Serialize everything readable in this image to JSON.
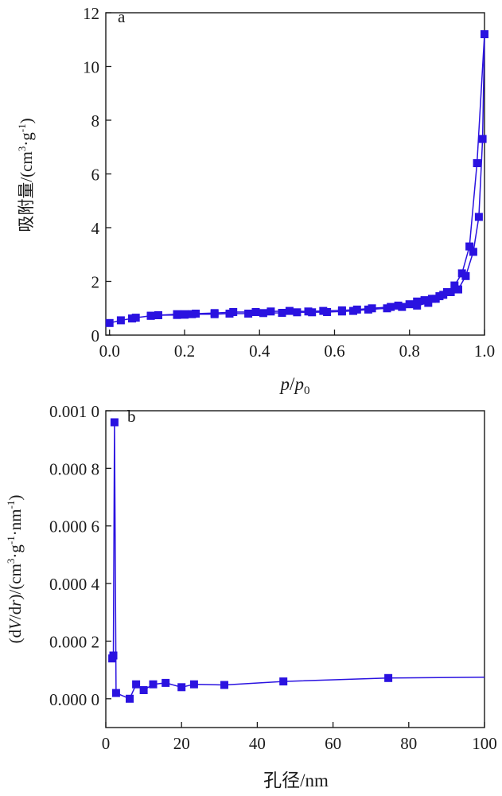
{
  "colors": {
    "series": "#2a12e0",
    "axis": "#1a1a1a"
  },
  "chart_data": [
    {
      "type": "line",
      "panel_label": "a",
      "xlabel_italic_1": "p",
      "xlabel_sep": "/",
      "xlabel_italic_2": "p",
      "xlabel_sub": "0",
      "ylabel_main": "吸附量/(cm",
      "ylabel_sup": "3",
      "ylabel_mid": "·g",
      "ylabel_sup2": "-1",
      "ylabel_end": ")",
      "xlim": [
        -0.01,
        1.0
      ],
      "ylim": [
        0,
        12
      ],
      "xticks": [
        0.0,
        0.2,
        0.4,
        0.6,
        0.8,
        1.0
      ],
      "xtick_labels": [
        "0.0",
        "0.2",
        "0.4",
        "0.6",
        "0.8",
        "1.0"
      ],
      "yticks": [
        0,
        2,
        4,
        6,
        8,
        10,
        12
      ],
      "ytick_labels": [
        "0",
        "2",
        "4",
        "6",
        "8",
        "10",
        "12"
      ],
      "grid": false,
      "series": [
        {
          "x": [
            0.0,
            0.03,
            0.06,
            0.07,
            0.11,
            0.13,
            0.18,
            0.2,
            0.22,
            0.28,
            0.32,
            0.37,
            0.41,
            0.46,
            0.5,
            0.54,
            0.58,
            0.62,
            0.65,
            0.69,
            0.74,
            0.78,
            0.82,
            0.85,
            0.87,
            0.89,
            0.91,
            0.93,
            0.95,
            0.97,
            0.985,
            0.995,
            1.0
          ],
          "y": [
            0.45,
            0.55,
            0.62,
            0.65,
            0.72,
            0.74,
            0.75,
            0.76,
            0.78,
            0.78,
            0.8,
            0.8,
            0.82,
            0.83,
            0.85,
            0.85,
            0.86,
            0.88,
            0.9,
            0.95,
            1.0,
            1.05,
            1.1,
            1.2,
            1.35,
            1.5,
            1.6,
            1.7,
            2.2,
            3.1,
            4.4,
            7.3,
            11.2
          ]
        },
        {
          "x": [
            1.0,
            0.98,
            0.96,
            0.94,
            0.92,
            0.9,
            0.88,
            0.86,
            0.84,
            0.82,
            0.8,
            0.77,
            0.75,
            0.7,
            0.66,
            0.62,
            0.57,
            0.53,
            0.48,
            0.43,
            0.39,
            0.33,
            0.28,
            0.23,
            0.2,
            0.18,
            0.13,
            0.11
          ],
          "y": [
            11.2,
            6.4,
            3.3,
            2.3,
            1.85,
            1.6,
            1.45,
            1.35,
            1.3,
            1.25,
            1.15,
            1.1,
            1.05,
            1.0,
            0.95,
            0.92,
            0.9,
            0.88,
            0.9,
            0.88,
            0.86,
            0.86,
            0.82,
            0.8,
            0.78,
            0.78,
            0.74,
            0.72
          ]
        }
      ]
    },
    {
      "type": "line",
      "panel_label": "b",
      "xlabel": "孔径/nm",
      "ylabel_pre": "(d",
      "ylabel_it1": "V",
      "ylabel_mid1": "/d",
      "ylabel_it2": "r",
      "ylabel_mid2": ")/(cm",
      "ylabel_sup1": "3",
      "ylabel_mid3": "·g",
      "ylabel_sup2": "-1",
      "ylabel_mid4": "·nm",
      "ylabel_sup3": "-1",
      "ylabel_end": ")",
      "xlim": [
        0,
        100
      ],
      "ylim": [
        -0.0001,
        0.001
      ],
      "xticks": [
        0,
        20,
        40,
        60,
        80,
        100
      ],
      "xtick_labels": [
        "0",
        "20",
        "40",
        "60",
        "80",
        "100"
      ],
      "yticks": [
        0,
        0.0002,
        0.0004,
        0.0006,
        0.0008,
        0.001
      ],
      "ytick_labels": [
        "0.000 0",
        "0.000 2",
        "0.000 4",
        "0.000 6",
        "0.000 8",
        "0.001 0"
      ],
      "grid": false,
      "series": [
        {
          "x": [
            1.7,
            2.0,
            2.3,
            2.7,
            6.3,
            8.0,
            10.0,
            12.5,
            15.8,
            20.0,
            23.3,
            31.3,
            46.9,
            74.6,
            100.0
          ],
          "y": [
            0.00014,
            0.00015,
            0.00096,
            2e-05,
            0.0,
            5e-05,
            3e-05,
            5e-05,
            5.5e-05,
            4e-05,
            5e-05,
            4.8e-05,
            6e-05,
            7.2e-05,
            7.5e-05
          ],
          "markers": [
            true,
            true,
            true,
            true,
            true,
            true,
            true,
            true,
            true,
            true,
            true,
            true,
            true,
            true,
            false
          ]
        }
      ]
    }
  ]
}
